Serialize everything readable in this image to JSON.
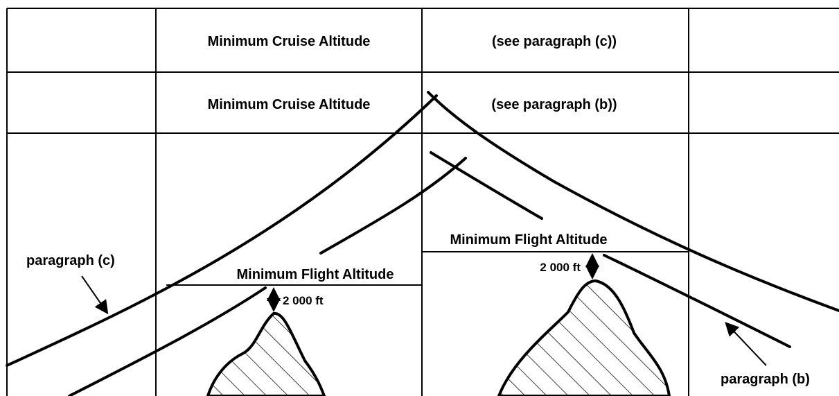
{
  "rows": [
    {
      "label": "Minimum Cruise Altitude",
      "note": "(see paragraph (c))"
    },
    {
      "label": "Minimum Cruise Altitude",
      "note": "(see paragraph (b))"
    }
  ],
  "left_terrain": {
    "label": "Minimum Flight Altitude",
    "clearance": "2 000 ft"
  },
  "right_terrain": {
    "label": "Minimum Flight Altitude",
    "clearance": "2 000 ft"
  },
  "annotations": [
    "paragraph (c)",
    "paragraph (b)"
  ]
}
